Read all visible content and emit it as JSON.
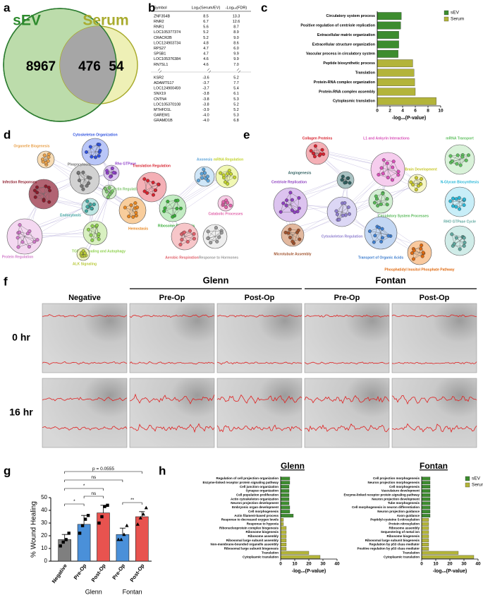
{
  "panel_labels": [
    "a",
    "b",
    "c",
    "d",
    "e",
    "f",
    "g",
    "h"
  ],
  "venn": {
    "sets": [
      "sEV",
      "Serum"
    ],
    "counts": [
      8967,
      476,
      54
    ]
  },
  "gene_table": {
    "header": [
      "Symbol",
      "Log₂(Serum/EV)",
      "-Log₁₀(FDR)"
    ],
    "row_groups": [
      [
        [
          "ZNF354B",
          "8.5",
          "13.3"
        ],
        [
          "RNR2",
          "6.7",
          "12.6"
        ],
        [
          "RNR1",
          "5.6",
          "8.7"
        ],
        [
          "LOC105377374",
          "5.2",
          "8.9"
        ],
        [
          "CRACR2B",
          "5.2",
          "9.0"
        ],
        [
          "LOC124903734",
          "4.8",
          "8.6"
        ],
        [
          "RPS27",
          "4.7",
          "6.0"
        ],
        [
          "SPSB1",
          "4.7",
          "9.9"
        ],
        [
          "LOC105376384",
          "4.6",
          "9.9"
        ],
        [
          "RN7SL1",
          "4.6",
          "7.0"
        ]
      ],
      [
        [
          "KSR2",
          "-3.6",
          "5.2"
        ],
        [
          "ADAMTS17",
          "-3.7",
          "7.7"
        ],
        [
          "LOC124900459",
          "-3.7",
          "5.4"
        ],
        [
          "SNX19",
          "-3.8",
          "6.1"
        ],
        [
          "CNTN4",
          "-3.8",
          "5.3"
        ],
        [
          "LOC105370108",
          "-3.8",
          "5.2"
        ],
        [
          "MTHFD1L",
          "-3.9",
          "5.2"
        ],
        [
          "GAREM1",
          "-4.0",
          "5.3"
        ],
        [
          "GRAMD1B",
          "-4.0",
          "6.8"
        ]
      ]
    ]
  },
  "network_d": {
    "clusters": [
      "Organelle Biogenesis",
      "Cytoskeleton Organization",
      "Phagocytosis",
      "Rho GTPase",
      "Infection Responses",
      "Actin Regulation",
      "Endocytosis",
      "Hemostasis",
      "Protein Regulation",
      "TGF-β Signaling and Autophagy",
      "ALK Signaling",
      "Translation Regulation",
      "Ribosome Biogenesis",
      "Axonesis",
      "mRNA Regulation",
      "Catabolic Processes",
      "Aerobic Respiration",
      "Response to Hormones"
    ]
  },
  "network_e": {
    "clusters": [
      "Collagen Proteins",
      "L1 and Ankyrin Interactions",
      "mRNA Transport",
      "Angiogenesis",
      "Brain Development",
      "N-Glycan Biosynthesis",
      "Centriole Replication",
      "Circulatory System Processes",
      "Cytoskeleton Regulation",
      "Microtubule Assembly",
      "Transport of Organic Acids",
      "RHO GTPase Cycle",
      "Phosphatidyl Inositol Phosphate Pathway"
    ]
  },
  "wound_images": {
    "groups": [
      "Glenn",
      "Fontan"
    ],
    "columns": [
      "Negative",
      "Pre-Op",
      "Post-Op",
      "Pre-Op",
      "Post-Op"
    ],
    "rows": [
      "0 hr",
      "16 hr"
    ]
  },
  "chart_data": [
    {
      "type": "hbar",
      "xlabel": "-log₁₀(P-value)",
      "categories": [
        "Circulatory system process",
        "Positive regulation of centriole replication",
        "Extracellular matrix organization",
        "Extracellular structure organization",
        "Vascular process in circulatory system",
        "Peptide biosynthetic process",
        "Translation",
        "Protein-RNA complex organization",
        "Protein-RNA complex assembly",
        "Cytoplasmic translation"
      ],
      "series": [
        {
          "name": "sEV",
          "color": "#3d8c2f",
          "values": [
            3.8,
            3.7,
            3.4,
            3.4,
            3.3,
            null,
            null,
            null,
            null,
            null
          ]
        },
        {
          "name": "Serum",
          "color": "#b3b43a",
          "values": [
            null,
            null,
            null,
            null,
            null,
            5.6,
            5.8,
            5.9,
            6.0,
            9.3
          ]
        }
      ],
      "xlim": [
        0,
        10
      ],
      "xticks": [
        0,
        2,
        4,
        6,
        8,
        10
      ],
      "legend": "top-right"
    },
    {
      "type": "bar_points",
      "ylabel": "% Wound Healing",
      "categories": [
        "Negative",
        "Pre-Op",
        "Post-Op",
        "Pre-Op",
        "Post-Op"
      ],
      "groups": [
        "Glenn",
        "Fontan"
      ],
      "values": [
        17,
        29,
        38,
        21,
        35
      ],
      "errors": [
        4,
        7,
        6,
        5,
        4
      ],
      "points": [
        [
          12,
          15,
          17,
          22
        ],
        [
          22,
          28,
          33,
          36
        ],
        [
          30,
          35,
          43,
          44
        ],
        [
          17,
          17,
          21,
          28
        ],
        [
          29,
          34,
          37,
          42
        ]
      ],
      "colors": [
        "#7f7f7f",
        "#4a90d9",
        "#e8534f",
        "#4a90d9",
        "#e8534f"
      ],
      "ylim": [
        0,
        50
      ],
      "yticks": [
        0,
        10,
        20,
        30,
        40,
        50
      ],
      "annotations": [
        "p = 0.0555",
        "ns",
        "*",
        "ns",
        "*",
        "**"
      ]
    },
    {
      "type": "hbar",
      "title": "Glenn",
      "xlabel": "-log₁₀(P-value)",
      "categories": [
        "Regulation of cell projection organization",
        "Enzyme-linked receptor protein signaling pathway",
        "Cell junction organization",
        "Synapse organization",
        "Cell population proliferation",
        "Actin cytoskeleton organization",
        "Neuron projection development",
        "Embryonic organ development",
        "Cell morphogenesis",
        "Actin filament-based process",
        "Response to decreased oxygen levels",
        "Response to hypoxia",
        "Ribonucleoprotein complex biogenesis",
        "Ribosome biogenesis",
        "Ribosome assembly",
        "Ribosomal large subunit assembly",
        "Non-membrane-bounded organelle assembly",
        "Ribosomal large subunit biogenesis",
        "Translation",
        "Cytoplasmic translation"
      ],
      "series": [
        {
          "color": "#3d8c2f",
          "values": [
            6.5,
            6.5,
            6,
            6,
            6,
            6,
            6,
            6.5,
            6.5,
            9,
            null,
            null,
            null,
            null,
            null,
            null,
            null,
            null,
            null,
            null
          ]
        },
        {
          "color": "#b3b43a",
          "values": [
            null,
            null,
            null,
            null,
            null,
            null,
            null,
            null,
            null,
            null,
            2,
            2,
            4,
            4,
            4,
            4,
            4,
            4,
            20,
            28
          ]
        }
      ],
      "xlim": [
        0,
        40
      ],
      "xticks": [
        0,
        10,
        20,
        30,
        40
      ]
    },
    {
      "type": "hbar",
      "title": "Fontan",
      "xlabel": "-log₁₀(P-value)",
      "categories": [
        "Cell projection morphogenesis",
        "Neuron projection morphogenesis",
        "Cell morphogenesis",
        "Vasculature development",
        "Enzyme-linked receptor protein signaling pathway",
        "Neuron projection development",
        "Tube morphogenesis",
        "Cell morphogenesis in neuron differentiation",
        "Neuron projection guidance",
        "Axon guidance",
        "Peptidyl-cysteine S-nitrosylation",
        "Protein nitrosylation",
        "Ribosome assembly",
        "Sequestering of metal ion",
        "Ribosome biogenesis",
        "Ribosomal large subunit biogenesis",
        "Regulation by p53 class mediator",
        "Positive regulation by p53 class mediator",
        "Translation",
        "Cytoplasmic translation"
      ],
      "series": [
        {
          "name": "sEV",
          "color": "#3d8c2f",
          "values": [
            6,
            6,
            6,
            6,
            6,
            6,
            6,
            6,
            6,
            6,
            null,
            null,
            null,
            null,
            null,
            null,
            null,
            null,
            null,
            null
          ]
        },
        {
          "name": "Serum",
          "color": "#b3b43a",
          "values": [
            null,
            null,
            null,
            null,
            null,
            null,
            null,
            null,
            null,
            null,
            5,
            5,
            5,
            5,
            5,
            5,
            5,
            5,
            26,
            37
          ]
        }
      ],
      "xlim": [
        0,
        40
      ],
      "xticks": [
        0,
        10,
        20,
        30,
        40
      ],
      "legend": "top-right"
    }
  ]
}
